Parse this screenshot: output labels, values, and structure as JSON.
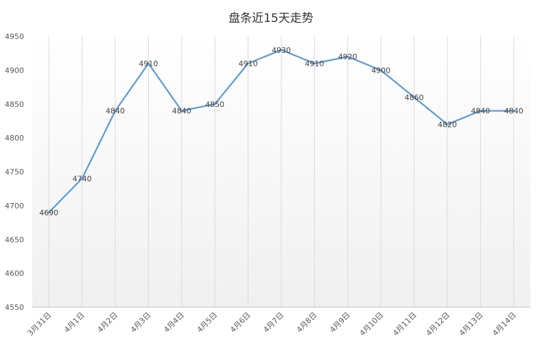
{
  "chart_data": {
    "type": "line",
    "title": "盘条近15天走势",
    "xlabel": "",
    "ylabel": "",
    "categories": [
      "3月31日",
      "4月1日",
      "4月2日",
      "4月3日",
      "4月4日",
      "4月5日",
      "4月6日",
      "4月7日",
      "4月8日",
      "4月9日",
      "4月10日",
      "4月11日",
      "4月12日",
      "4月13日",
      "4月14日"
    ],
    "series": [
      {
        "name": "",
        "values": [
          4690,
          4740,
          4840,
          4910,
          4840,
          4850,
          4910,
          4930,
          4910,
          4920,
          4900,
          4860,
          4820,
          4840,
          4840
        ]
      }
    ],
    "ylim": [
      4550,
      4950
    ],
    "yticks": [
      4550,
      4600,
      4650,
      4700,
      4750,
      4800,
      4850,
      4900,
      4950
    ],
    "line_color": "#5b9bd5",
    "grid": "vertical",
    "legend": "none",
    "data_labels": true
  }
}
